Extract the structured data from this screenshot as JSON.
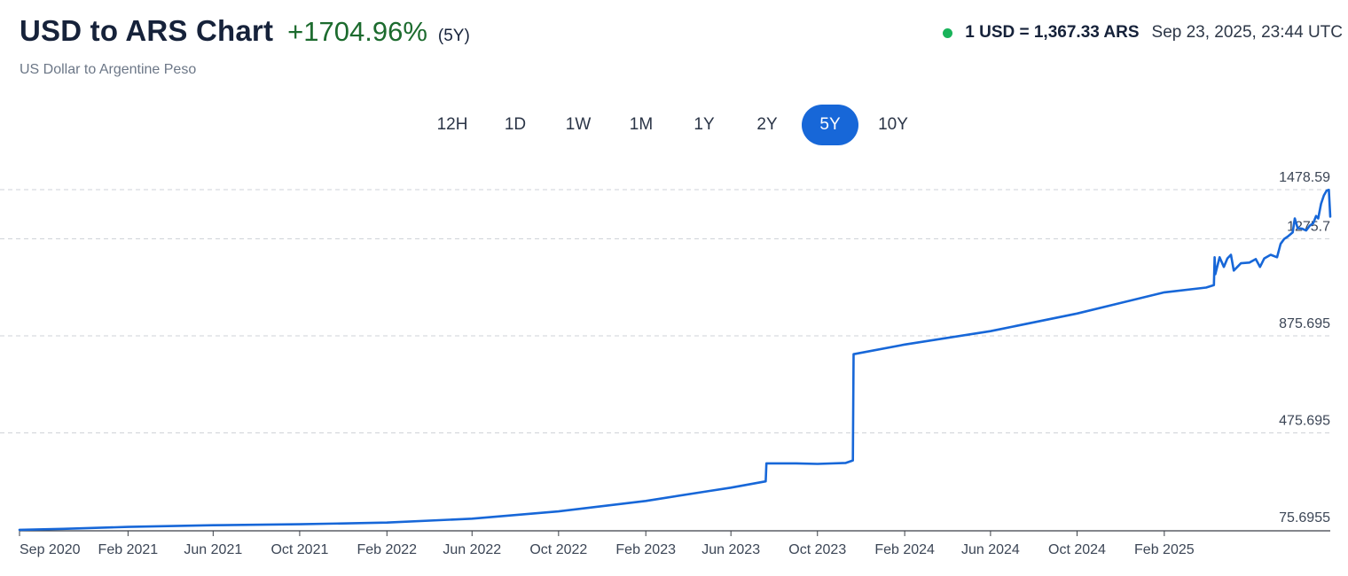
{
  "header": {
    "title": "USD to ARS Chart",
    "change": "+1704.96%",
    "period": "(5Y)",
    "subtitle": "US Dollar to Argentine Peso"
  },
  "rate": {
    "value": "1 USD = 1,367.33 ARS",
    "time": "Sep 23, 2025, 23:44 UTC",
    "status_color": "#19b35a"
  },
  "period_tabs": [
    {
      "label": "12H",
      "active": false
    },
    {
      "label": "1D",
      "active": false
    },
    {
      "label": "1W",
      "active": false
    },
    {
      "label": "1M",
      "active": false
    },
    {
      "label": "1Y",
      "active": false
    },
    {
      "label": "2Y",
      "active": false
    },
    {
      "label": "5Y",
      "active": true
    },
    {
      "label": "10Y",
      "active": false
    }
  ],
  "chart_data": {
    "type": "line",
    "line_color": "#1767d8",
    "grid": true,
    "y_ticks": [
      "1478.59",
      "1275.7",
      "875.695",
      "475.695",
      "75.6955"
    ],
    "y_tick_values": [
      1478.59,
      1275.7,
      875.695,
      475.695,
      75.6955
    ],
    "ylim": [
      75.6955,
      1478.59
    ],
    "xlim": [
      "2020-09-01",
      "2025-09-23"
    ],
    "x_ticks": [
      {
        "label": "Sep 2020",
        "date": "2020-09-01"
      },
      {
        "label": "Feb 2021",
        "date": "2021-02-01"
      },
      {
        "label": "Jun 2021",
        "date": "2021-06-01"
      },
      {
        "label": "Oct 2021",
        "date": "2021-10-01"
      },
      {
        "label": "Feb 2022",
        "date": "2022-02-01"
      },
      {
        "label": "Jun 2022",
        "date": "2022-06-01"
      },
      {
        "label": "Oct 2022",
        "date": "2022-10-01"
      },
      {
        "label": "Feb 2023",
        "date": "2023-02-01"
      },
      {
        "label": "Jun 2023",
        "date": "2023-06-01"
      },
      {
        "label": "Oct 2023",
        "date": "2023-10-01"
      },
      {
        "label": "Feb 2024",
        "date": "2024-02-01"
      },
      {
        "label": "Jun 2024",
        "date": "2024-06-01"
      },
      {
        "label": "Oct 2024",
        "date": "2024-10-01"
      },
      {
        "label": "Feb 2025",
        "date": "2025-02-01"
      }
    ],
    "series": [
      {
        "points": [
          [
            "2020-09-01",
            76
          ],
          [
            "2020-11-01",
            80
          ],
          [
            "2021-02-01",
            88
          ],
          [
            "2021-06-01",
            95
          ],
          [
            "2021-10-01",
            99
          ],
          [
            "2022-02-01",
            106
          ],
          [
            "2022-06-01",
            122
          ],
          [
            "2022-10-01",
            152
          ],
          [
            "2023-02-01",
            195
          ],
          [
            "2023-05-01",
            236
          ],
          [
            "2023-06-01",
            250
          ],
          [
            "2023-07-20",
            276
          ],
          [
            "2023-07-21",
            350
          ],
          [
            "2023-09-01",
            350
          ],
          [
            "2023-10-01",
            348
          ],
          [
            "2023-11-10",
            352
          ],
          [
            "2023-11-20",
            362
          ],
          [
            "2023-11-21",
            800
          ],
          [
            "2024-02-01",
            840
          ],
          [
            "2024-06-01",
            895
          ],
          [
            "2024-10-01",
            968
          ],
          [
            "2025-02-01",
            1055
          ],
          [
            "2025-04-01",
            1075
          ],
          [
            "2025-04-12",
            1085
          ],
          [
            "2025-04-13",
            1200
          ],
          [
            "2025-04-14",
            1130
          ],
          [
            "2025-04-20",
            1200
          ],
          [
            "2025-04-26",
            1160
          ],
          [
            "2025-05-01",
            1195
          ],
          [
            "2025-05-06",
            1210
          ],
          [
            "2025-05-10",
            1145
          ],
          [
            "2025-05-20",
            1175
          ],
          [
            "2025-06-01",
            1178
          ],
          [
            "2025-06-10",
            1192
          ],
          [
            "2025-06-16",
            1160
          ],
          [
            "2025-06-22",
            1195
          ],
          [
            "2025-07-01",
            1210
          ],
          [
            "2025-07-10",
            1200
          ],
          [
            "2025-07-15",
            1255
          ],
          [
            "2025-07-20",
            1275
          ],
          [
            "2025-07-25",
            1285
          ],
          [
            "2025-08-01",
            1302
          ],
          [
            "2025-08-04",
            1360
          ],
          [
            "2025-08-08",
            1320
          ],
          [
            "2025-08-14",
            1318
          ],
          [
            "2025-08-20",
            1310
          ],
          [
            "2025-08-25",
            1330
          ],
          [
            "2025-08-30",
            1340
          ],
          [
            "2025-09-03",
            1370
          ],
          [
            "2025-09-06",
            1360
          ],
          [
            "2025-09-10",
            1420
          ],
          [
            "2025-09-14",
            1455
          ],
          [
            "2025-09-18",
            1475
          ],
          [
            "2025-09-21",
            1478
          ],
          [
            "2025-09-23",
            1367
          ]
        ]
      }
    ]
  }
}
